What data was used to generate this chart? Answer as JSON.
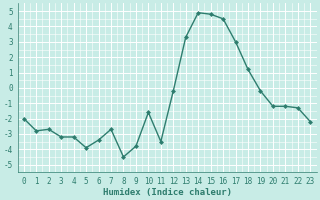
{
  "x": [
    0,
    1,
    2,
    3,
    4,
    5,
    6,
    7,
    8,
    9,
    10,
    11,
    12,
    13,
    14,
    15,
    16,
    17,
    18,
    19,
    20,
    21,
    22,
    23
  ],
  "y": [
    -2.0,
    -2.8,
    -2.7,
    -3.2,
    -3.2,
    -3.9,
    -3.4,
    -2.7,
    -4.5,
    -3.8,
    -1.6,
    -3.5,
    -0.2,
    3.3,
    4.9,
    4.8,
    4.5,
    3.0,
    1.2,
    -0.2,
    -1.2,
    -1.2,
    -1.3,
    -2.2
  ],
  "line_color": "#2e7d6e",
  "marker": "D",
  "marker_size": 2.0,
  "line_width": 1.0,
  "bg_color": "#c8ece6",
  "grid_color": "#b0d8d0",
  "xlabel": "Humidex (Indice chaleur)",
  "ylim": [
    -5.5,
    5.5
  ],
  "xlim": [
    -0.5,
    23.5
  ],
  "xticks": [
    0,
    1,
    2,
    3,
    4,
    5,
    6,
    7,
    8,
    9,
    10,
    11,
    12,
    13,
    14,
    15,
    16,
    17,
    18,
    19,
    20,
    21,
    22,
    23
  ],
  "yticks": [
    -5,
    -4,
    -3,
    -2,
    -1,
    0,
    1,
    2,
    3,
    4,
    5
  ],
  "xlabel_fontsize": 6.5,
  "tick_fontsize": 5.5,
  "tick_color": "#2e7d6e",
  "grid_major_color": "#ffffff",
  "grid_minor_color": "#d8f0ea"
}
